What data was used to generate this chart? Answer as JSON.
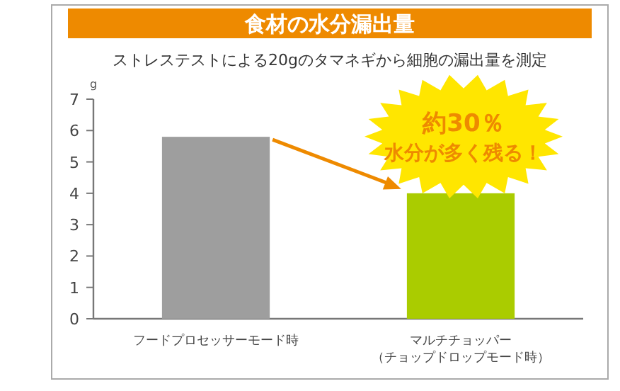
{
  "chart_data": {
    "type": "bar",
    "title": "食材の水分漏出量",
    "subtitle": "ストレステストによる20gのタマネギから細胞の漏出量を測定",
    "ylabel": "g",
    "categories": [
      "フードプロセッサーモード時",
      "マルチチョッパー（チョップドロップモード時）"
    ],
    "values": [
      5.8,
      4.0
    ],
    "colors": [
      "#9e9e9e",
      "#aacc00"
    ],
    "ylim": [
      0,
      7
    ],
    "yticks": [
      0,
      1,
      2,
      3,
      4,
      5,
      6,
      7
    ],
    "annotations": [
      {
        "text": "約30％",
        "x": "マルチチョッパー（チョップドロップモード時）",
        "y": 4.0
      },
      {
        "text": "水分が多く残る！",
        "x": "マルチチョッパー（チョップドロップモード時）",
        "y": 4.0
      }
    ]
  }
}
